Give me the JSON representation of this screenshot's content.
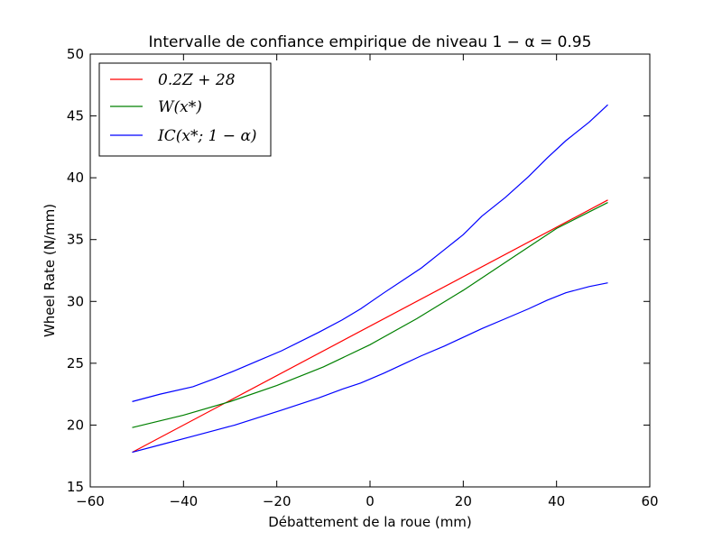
{
  "chart_data": {
    "type": "line",
    "title": "Intervalle de confiance empirique de niveau 1 − α = 0.95",
    "xlabel": "Débattement de la roue (mm)",
    "ylabel": "Wheel Rate (N/mm)",
    "xlim": [
      -60,
      60
    ],
    "ylim": [
      15,
      50
    ],
    "xticks": [
      -60,
      -40,
      -20,
      0,
      20,
      40,
      60
    ],
    "yticks": [
      15,
      20,
      25,
      30,
      35,
      40,
      45,
      50
    ],
    "xtick_labels": [
      "−60",
      "−40",
      "−20",
      "0",
      "20",
      "40",
      "60"
    ],
    "ytick_labels": [
      "15",
      "20",
      "25",
      "30",
      "35",
      "40",
      "45",
      "50"
    ],
    "grid": false,
    "legend_position": "top-left",
    "series": [
      {
        "name": "0.2Z + 28",
        "color": "#ff0000",
        "x": [
          -51,
          51
        ],
        "y": [
          17.8,
          38.2
        ]
      },
      {
        "name": "W(x*)",
        "color": "#008000",
        "x": [
          -51,
          -40,
          -30,
          -20,
          -10,
          0,
          10,
          20,
          30,
          40,
          51
        ],
        "y": [
          19.8,
          20.8,
          21.9,
          23.2,
          24.7,
          26.5,
          28.6,
          30.9,
          33.4,
          35.9,
          38.0
        ]
      },
      {
        "name": "IC(x*; 1 − α)",
        "color": "#0000ff",
        "x": [
          -51,
          -45,
          -38,
          -33,
          -29,
          -24,
          -19,
          -11,
          -6,
          -2,
          3,
          7,
          11,
          16,
          20,
          24,
          29,
          34,
          38,
          42,
          47,
          51
        ],
        "y": [
          21.9,
          22.5,
          23.1,
          23.8,
          24.4,
          25.2,
          26.0,
          27.5,
          28.5,
          29.4,
          30.7,
          31.7,
          32.7,
          34.2,
          35.4,
          36.9,
          38.4,
          40.1,
          41.6,
          43.0,
          44.5,
          45.9
        ]
      },
      {
        "name": "",
        "color": "#0000ff",
        "x": [
          -51,
          -45,
          -38,
          -33,
          -29,
          -24,
          -19,
          -11,
          -6,
          -2,
          3,
          7,
          11,
          16,
          20,
          24,
          29,
          34,
          38,
          42,
          47,
          51
        ],
        "y": [
          17.8,
          18.4,
          19.1,
          19.6,
          20.0,
          20.6,
          21.2,
          22.2,
          22.9,
          23.4,
          24.2,
          24.9,
          25.6,
          26.4,
          27.1,
          27.8,
          28.6,
          29.4,
          30.1,
          30.7,
          31.2,
          31.5
        ]
      }
    ]
  }
}
